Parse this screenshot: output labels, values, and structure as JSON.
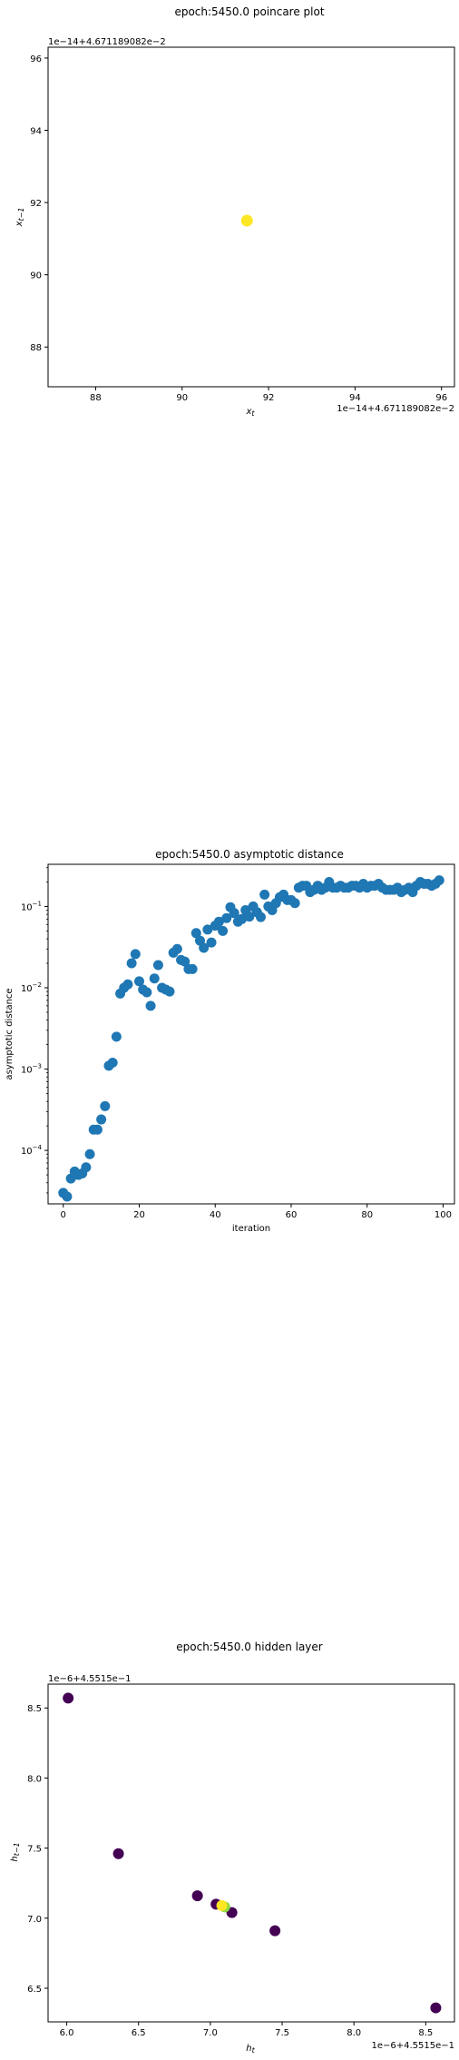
{
  "chart_data": [
    {
      "type": "scatter",
      "title": "epoch:5450.0 poincare plot",
      "xlabel": "x_t",
      "ylabel": "x_{t-1}",
      "offset_label_x": "1e−14+4.671189082e−2",
      "offset_label_y": "1e−14+4.671189082e−2",
      "xlim": [
        86.9,
        96.3
      ],
      "ylim": [
        86.9,
        96.3
      ],
      "xticks": [
        88,
        90,
        92,
        94,
        96
      ],
      "yticks": [
        88,
        90,
        92,
        94,
        96
      ],
      "marker_color": "#fde725",
      "points": [
        {
          "x": 91.5,
          "y": 91.5
        }
      ],
      "grid": false
    },
    {
      "type": "scatter",
      "title": "epoch:5450.0 asymptotic distance",
      "xlabel": "iteration",
      "ylabel": "asymptotic distance",
      "yscale": "log",
      "xlim": [
        -4,
        103
      ],
      "ylim": [
        2.2e-05,
        0.33
      ],
      "xticks": [
        0,
        20,
        40,
        60,
        80,
        100
      ],
      "yticks": [
        {
          "value": 0.0001,
          "base": "10",
          "exp": "−4"
        },
        {
          "value": 0.001,
          "base": "10",
          "exp": "−3"
        },
        {
          "value": 0.01,
          "base": "10",
          "exp": "−2"
        },
        {
          "value": 0.1,
          "base": "10",
          "exp": "−1"
        }
      ],
      "marker_color": "#1f77b4",
      "x": [
        0,
        1,
        2,
        3,
        4,
        5,
        6,
        7,
        8,
        9,
        10,
        11,
        12,
        13,
        14,
        15,
        16,
        17,
        18,
        19,
        20,
        21,
        22,
        23,
        24,
        25,
        26,
        27,
        28,
        29,
        30,
        31,
        32,
        33,
        34,
        35,
        36,
        37,
        38,
        39,
        40,
        41,
        42,
        43,
        44,
        45,
        46,
        47,
        48,
        49,
        50,
        51,
        52,
        53,
        54,
        55,
        56,
        57,
        58,
        59,
        60,
        61,
        62,
        63,
        64,
        65,
        66,
        67,
        68,
        69,
        70,
        71,
        72,
        73,
        74,
        75,
        76,
        77,
        78,
        79,
        80,
        81,
        82,
        83,
        84,
        85,
        86,
        87,
        88,
        89,
        90,
        91,
        92,
        93,
        94,
        95,
        96,
        97,
        98,
        99
      ],
      "y": [
        3e-05,
        2.7e-05,
        4.5e-05,
        5.5e-05,
        5e-05,
        5.2e-05,
        6.2e-05,
        9e-05,
        0.00018,
        0.00018,
        0.00024,
        0.00035,
        0.0011,
        0.0012,
        0.0025,
        0.0085,
        0.01,
        0.011,
        0.02,
        0.026,
        0.012,
        0.0095,
        0.0088,
        0.006,
        0.013,
        0.019,
        0.01,
        0.0095,
        0.009,
        0.027,
        0.03,
        0.022,
        0.021,
        0.017,
        0.017,
        0.047,
        0.038,
        0.031,
        0.052,
        0.036,
        0.058,
        0.065,
        0.05,
        0.072,
        0.098,
        0.083,
        0.065,
        0.07,
        0.09,
        0.075,
        0.1,
        0.085,
        0.074,
        0.14,
        0.1,
        0.09,
        0.11,
        0.13,
        0.14,
        0.12,
        0.12,
        0.11,
        0.17,
        0.18,
        0.18,
        0.15,
        0.16,
        0.18,
        0.16,
        0.17,
        0.2,
        0.17,
        0.17,
        0.18,
        0.17,
        0.17,
        0.18,
        0.18,
        0.17,
        0.19,
        0.17,
        0.18,
        0.18,
        0.19,
        0.17,
        0.16,
        0.16,
        0.16,
        0.17,
        0.15,
        0.16,
        0.17,
        0.15,
        0.18,
        0.2,
        0.19,
        0.19,
        0.18,
        0.19,
        0.21
      ],
      "grid": false
    },
    {
      "type": "scatter",
      "title": "epoch:5450.0 hidden layer",
      "xlabel": "h_t",
      "ylabel": "h_{t-1}",
      "offset_label_x": "1e−6+4.5515e−1",
      "offset_label_y": "1e−6+4.5515e−1",
      "xlim": [
        5.87,
        8.7
      ],
      "ylim": [
        6.26,
        8.67
      ],
      "xticks": [
        "6.0",
        "6.5",
        "7.0",
        "7.5",
        "8.0",
        "8.5"
      ],
      "yticks": [
        "6.5",
        "7.0",
        "7.5",
        "8.0",
        "8.5"
      ],
      "colormap": "viridis",
      "points": [
        {
          "x": 6.01,
          "y": 8.57,
          "color": "#440154"
        },
        {
          "x": 6.36,
          "y": 7.46,
          "color": "#440154"
        },
        {
          "x": 6.91,
          "y": 7.16,
          "color": "#440154"
        },
        {
          "x": 7.04,
          "y": 7.1,
          "color": "#440154"
        },
        {
          "x": 7.15,
          "y": 7.04,
          "color": "#440154"
        },
        {
          "x": 7.45,
          "y": 6.91,
          "color": "#440154"
        },
        {
          "x": 8.57,
          "y": 6.36,
          "color": "#440154"
        },
        {
          "x": 7.1,
          "y": 7.08,
          "color": "#8fd744"
        },
        {
          "x": 7.08,
          "y": 7.09,
          "color": "#fde725"
        }
      ],
      "grid": false
    }
  ]
}
